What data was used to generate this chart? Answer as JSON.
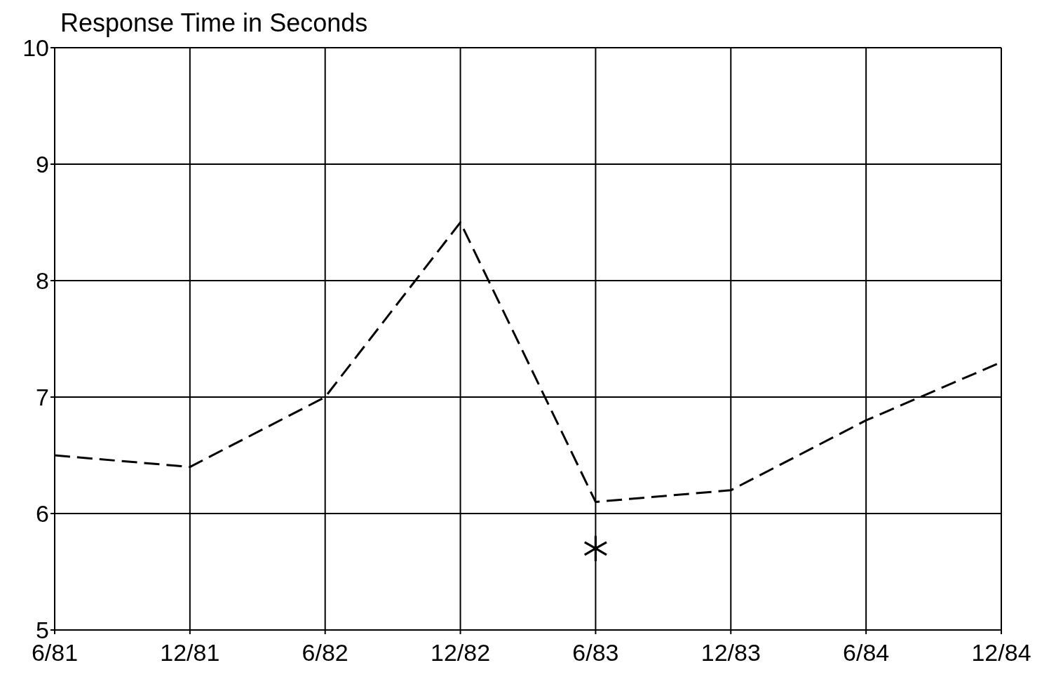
{
  "chart_data": {
    "type": "line",
    "title": "Response Time in Seconds",
    "categories": [
      "6/81",
      "12/81",
      "6/82",
      "12/82",
      "6/83",
      "12/83",
      "6/84",
      "12/84"
    ],
    "series": [
      {
        "color": "#000000",
        "values": [
          6.5,
          6.4,
          7.0,
          8.5,
          6.1,
          6.2,
          6.8,
          7.3
        ],
        "marker": "none",
        "line_style": "dashed"
      },
      {
        "type": "scatter",
        "color": "#000000",
        "x": [
          "6/83"
        ],
        "values": [
          5.7
        ],
        "marker": "cross"
      }
    ],
    "ylim": [
      5,
      10
    ],
    "yticks": [
      5,
      6,
      7,
      8,
      9,
      10
    ],
    "grid": true
  }
}
